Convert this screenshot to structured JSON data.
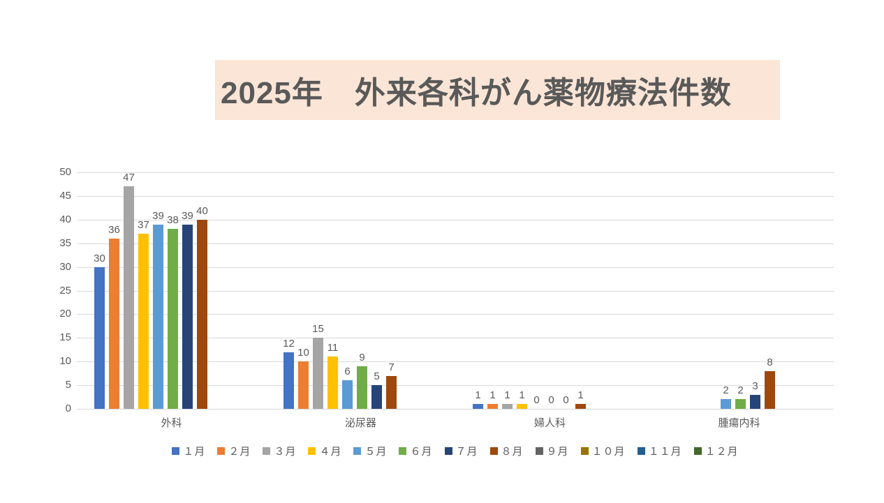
{
  "title": {
    "text": "2025年　外来各科がん薬物療法件数",
    "bg_color": "#FBE5D6",
    "text_color": "#595959"
  },
  "chart_data": {
    "type": "bar",
    "title": "2025年　外来各科がん薬物療法件数",
    "categories": [
      "外科",
      "泌尿器",
      "婦人科",
      "腫瘍内科"
    ],
    "series": [
      {
        "name": "１月",
        "color": "#4472C4",
        "values": [
          30,
          12,
          1,
          null
        ]
      },
      {
        "name": "２月",
        "color": "#ED7D31",
        "values": [
          36,
          10,
          1,
          null
        ]
      },
      {
        "name": "３月",
        "color": "#A5A5A5",
        "values": [
          47,
          15,
          1,
          null
        ]
      },
      {
        "name": "４月",
        "color": "#FFC000",
        "values": [
          37,
          11,
          1,
          null
        ]
      },
      {
        "name": "５月",
        "color": "#5B9BD5",
        "values": [
          39,
          6,
          0,
          2
        ]
      },
      {
        "name": "６月",
        "color": "#70AD47",
        "values": [
          38,
          9,
          0,
          2
        ]
      },
      {
        "name": "７月",
        "color": "#264478",
        "values": [
          39,
          5,
          0,
          3
        ]
      },
      {
        "name": "８月",
        "color": "#9E480E",
        "values": [
          40,
          7,
          1,
          8
        ]
      },
      {
        "name": "９月",
        "color": "#636363",
        "values": [
          null,
          null,
          null,
          null
        ]
      },
      {
        "name": "１０月",
        "color": "#997300",
        "values": [
          null,
          null,
          null,
          null
        ]
      },
      {
        "name": "１１月",
        "color": "#255E91",
        "values": [
          null,
          null,
          null,
          null
        ]
      },
      {
        "name": "１２月",
        "color": "#43682B",
        "values": [
          null,
          null,
          null,
          null
        ]
      }
    ],
    "y_axis": {
      "min": 0,
      "max": 50,
      "step": 5
    },
    "xlabel": "",
    "ylabel": "",
    "grid": "horizontal",
    "data_labels": true,
    "legend_position": "bottom",
    "colors": {
      "axis_text": "#595959",
      "data_label_text": "#595959",
      "category_text": "#595959",
      "legend_text": "#595959",
      "gridline": "#D9D9D9"
    }
  }
}
